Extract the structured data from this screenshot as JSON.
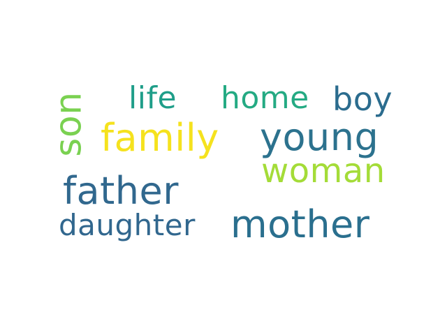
{
  "words": [
    {
      "text": "daughter",
      "color": "#31678e"
    },
    {
      "text": "mother",
      "color": "#2a6f8e"
    },
    {
      "text": "father",
      "color": "#31688e"
    },
    {
      "text": "woman",
      "color": "#a4dc38"
    },
    {
      "text": "family",
      "color": "#f5e21e"
    },
    {
      "text": "young",
      "color": "#2c728e"
    },
    {
      "text": "life",
      "color": "#1f9e89"
    },
    {
      "text": "home",
      "color": "#24aa83"
    },
    {
      "text": "boy",
      "color": "#2b6c8e"
    },
    {
      "text": "son",
      "color": "#7ad151"
    }
  ]
}
